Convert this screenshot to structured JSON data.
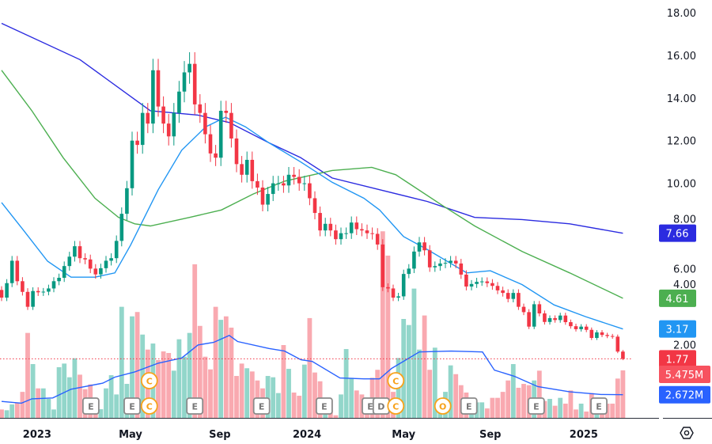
{
  "chart_data": {
    "type": "candlestick",
    "interval": "weekly",
    "y_ticks": [
      "18.00",
      "16.00",
      "14.00",
      "12.00",
      "10.00",
      "8.00",
      "6.00",
      "4.00",
      "2.00"
    ],
    "x_ticks": [
      {
        "label": "2023",
        "week": 6.8
      },
      {
        "label": "May",
        "week": 24.7
      },
      {
        "label": "Sep",
        "week": 41.8
      },
      {
        "label": "2024",
        "week": 58.5
      },
      {
        "label": "May",
        "week": 77
      },
      {
        "label": "Sep",
        "week": 93.6
      },
      {
        "label": "2025",
        "week": 111.5
      }
    ],
    "close": [
      4.64,
      5.32,
      6.37,
      5.41,
      4.91,
      4.21,
      4.95,
      4.89,
      4.92,
      5.07,
      5.41,
      5.57,
      6.12,
      6.56,
      7.05,
      6.49,
      6.43,
      6.0,
      5.73,
      6.02,
      6.37,
      6.49,
      7.3,
      8.57,
      9.77,
      12.0,
      11.8,
      13.3,
      12.8,
      15.3,
      13.6,
      12.8,
      12.2,
      13.3,
      14.3,
      15.2,
      15.6,
      13.7,
      13.3,
      12.3,
      11.4,
      11.2,
      13.4,
      13.3,
      12.1,
      10.9,
      10.4,
      11.1,
      10.1,
      9.8,
      9.0,
      9.5,
      10.0,
      10.0,
      9.9,
      10.4,
      10.3,
      10.0,
      10.0,
      9.3,
      8.61,
      7.79,
      8.1,
      7.79,
      7.38,
      7.66,
      7.66,
      8.16,
      7.85,
      7.79,
      7.66,
      7.63,
      7.13,
      5.13,
      5.07,
      4.64,
      4.7,
      5.75,
      6.0,
      6.8,
      7.23,
      6.86,
      6.06,
      6.12,
      6.24,
      6.27,
      6.37,
      6.24,
      5.72,
      5.16,
      5.28,
      5.38,
      5.4,
      5.32,
      5.19,
      4.98,
      4.86,
      4.58,
      4.86,
      4.21,
      3.96,
      3.28,
      4.33,
      3.9,
      3.5,
      3.68,
      3.59,
      3.8,
      3.49,
      3.3,
      3.16,
      3.28,
      3.13,
      2.75,
      3.01,
      2.89,
      2.84,
      2.81,
      2.11,
      1.77
    ],
    "first_open": 5.0,
    "volume_millions": [
      0.97,
      0.88,
      1.55,
      1.79,
      3.0,
      9.79,
      6.2,
      3.4,
      3.4,
      2.19,
      0.97,
      5.84,
      6.26,
      4.68,
      6.87,
      4.98,
      3.31,
      3.86,
      1.5,
      1.0,
      3.4,
      4.92,
      2.7,
      12.8,
      3.92,
      11.7,
      12.2,
      9.6,
      7.87,
      8.57,
      6.66,
      7.66,
      7.48,
      5.44,
      9.06,
      7.05,
      9.79,
      17.7,
      10.6,
      7.05,
      5.59,
      12.8,
      11.3,
      11.7,
      10.4,
      4.83,
      6.26,
      5.72,
      5.35,
      4.31,
      3.4,
      4.83,
      4.68,
      2.86,
      8.39,
      5.65,
      2.92,
      2.55,
      6.14,
      11.5,
      5.23,
      4.22,
      1.64,
      0.88,
      0.3,
      2.7,
      7.93,
      4.62,
      3.16,
      2.7,
      1.6,
      4.62,
      5.54,
      21.5,
      18.7,
      3.0,
      6.9,
      11.4,
      10.7,
      14.9,
      7.87,
      11.8,
      5.54,
      8.09,
      1.6,
      3.0,
      6.05,
      5.04,
      3.77,
      2.92,
      2.31,
      1.79,
      1.79,
      1.09,
      2.31,
      2.31,
      3.0,
      4.31,
      6.2,
      3.47,
      3.92,
      3.77,
      4.31,
      5.44,
      1.94,
      2.19,
      1.4,
      2.31,
      1.64,
      3.16,
      0.97,
      1.64,
      0.73,
      2.86,
      0.73,
      1.34,
      1.64,
      1.64,
      4.53,
      5.475
    ],
    "moving_averages": [
      {
        "name": "ma-long",
        "color": "#2b2be0",
        "last": "7.66",
        "points": [
          [
            0,
            17.5
          ],
          [
            15,
            15.8
          ],
          [
            28.5,
            13.4
          ],
          [
            37.6,
            13.2
          ],
          [
            43.6,
            12.85
          ],
          [
            51.2,
            11.9
          ],
          [
            57.3,
            11.2
          ],
          [
            63.3,
            10.25
          ],
          [
            72.4,
            9.7
          ],
          [
            81.5,
            9.15
          ],
          [
            90.6,
            8.4
          ],
          [
            99.7,
            8.3
          ],
          [
            108.8,
            8.1
          ],
          [
            119,
            7.66
          ]
        ]
      },
      {
        "name": "ma-mid",
        "color": "#4caf50",
        "last": "4.61",
        "points": [
          [
            0,
            15.3
          ],
          [
            5.8,
            13.4
          ],
          [
            11.8,
            11.2
          ],
          [
            17.9,
            9.3
          ],
          [
            22.4,
            8.4
          ],
          [
            25.5,
            8.1
          ],
          [
            28.5,
            8.0
          ],
          [
            36,
            8.4
          ],
          [
            42.1,
            8.75
          ],
          [
            48.2,
            9.5
          ],
          [
            54.2,
            10.1
          ],
          [
            63.3,
            10.6
          ],
          [
            70.9,
            10.75
          ],
          [
            75.5,
            10.4
          ],
          [
            84.5,
            8.95
          ],
          [
            90.6,
            8.0
          ],
          [
            99.7,
            6.8
          ],
          [
            108.8,
            5.8
          ],
          [
            119,
            4.61
          ]
        ]
      },
      {
        "name": "ma-short",
        "color": "#2196f3",
        "last": "3.17",
        "points": [
          [
            0,
            9.1
          ],
          [
            4.2,
            7.8
          ],
          [
            8.8,
            6.35
          ],
          [
            13.3,
            5.6
          ],
          [
            17.9,
            5.6
          ],
          [
            21.7,
            5.8
          ],
          [
            24.7,
            7.1
          ],
          [
            30,
            9.7
          ],
          [
            34.5,
            11.55
          ],
          [
            39.1,
            12.65
          ],
          [
            42.9,
            13.1
          ],
          [
            46.7,
            12.65
          ],
          [
            51.2,
            11.9
          ],
          [
            57.3,
            11.0
          ],
          [
            63.3,
            10.05
          ],
          [
            69.4,
            9.3
          ],
          [
            72.4,
            8.75
          ],
          [
            77,
            7.5
          ],
          [
            81.5,
            6.9
          ],
          [
            89.1,
            5.8
          ],
          [
            93.6,
            5.9
          ],
          [
            99.7,
            5.25
          ],
          [
            105.8,
            4.3
          ],
          [
            111.8,
            3.75
          ],
          [
            119,
            3.17
          ]
        ]
      }
    ],
    "volume_ma": {
      "color": "#2962ff",
      "last": "2.672M",
      "points": [
        [
          0,
          1.9
        ],
        [
          3.8,
          1.7
        ],
        [
          5.8,
          2.2
        ],
        [
          9.8,
          2.3
        ],
        [
          13.3,
          3.3
        ],
        [
          19.4,
          4.0
        ],
        [
          21.7,
          4.7
        ],
        [
          25.5,
          5.3
        ],
        [
          30,
          6.3
        ],
        [
          34.5,
          6.9
        ],
        [
          37.6,
          8.4
        ],
        [
          40.6,
          8.7
        ],
        [
          43.6,
          9.5
        ],
        [
          45.2,
          8.8
        ],
        [
          51.2,
          8.0
        ],
        [
          54.2,
          7.7
        ],
        [
          57.3,
          6.7
        ],
        [
          59.5,
          6.5
        ],
        [
          64.8,
          4.6
        ],
        [
          69.4,
          4.5
        ],
        [
          72.4,
          4.5
        ],
        [
          74.7,
          5.7
        ],
        [
          80,
          7.6
        ],
        [
          86.1,
          7.7
        ],
        [
          92.1,
          7.6
        ],
        [
          94.4,
          5.5
        ],
        [
          98.2,
          4.8
        ],
        [
          102.7,
          3.6
        ],
        [
          108.8,
          3.0
        ],
        [
          114.8,
          2.7
        ],
        [
          119,
          2.672
        ]
      ]
    },
    "price_labels": [
      {
        "text": "7.66",
        "value": 7.66,
        "color": "#2b2be0"
      },
      {
        "text": "4.61",
        "value": 4.61,
        "color": "#4caf50"
      },
      {
        "text": "3.17",
        "value": 3.17,
        "color": "#2196f3"
      },
      {
        "text": "1.77",
        "value": 1.77,
        "color": "#f23645"
      }
    ],
    "volume_labels": [
      {
        "text": "5.475M",
        "value": 5.475,
        "color": "#f7525f"
      },
      {
        "text": "2.672M",
        "value": 2.672,
        "color": "#2962ff"
      }
    ],
    "last_price": 1.77,
    "events": [
      {
        "letter": "E",
        "week": 17.1,
        "row": 0
      },
      {
        "letter": "E",
        "week": 25,
        "row": 0
      },
      {
        "letter": "C",
        "week": 28.3,
        "row": 0
      },
      {
        "letter": "C",
        "week": 28.3,
        "row": 1
      },
      {
        "letter": "E",
        "week": 37,
        "row": 0
      },
      {
        "letter": "E",
        "week": 49.8,
        "row": 0
      },
      {
        "letter": "E",
        "week": 61.8,
        "row": 0
      },
      {
        "letter": "E",
        "week": 70.6,
        "row": 0
      },
      {
        "letter": "D",
        "week": 72.7,
        "row": 0
      },
      {
        "letter": "C",
        "week": 75.5,
        "row": 0
      },
      {
        "letter": "C",
        "week": 75.5,
        "row": 1
      },
      {
        "letter": "O",
        "week": 84.5,
        "row": 0
      },
      {
        "letter": "E",
        "week": 89.5,
        "row": 0
      },
      {
        "letter": "E",
        "week": 102.4,
        "row": 0
      },
      {
        "letter": "E",
        "week": 114.4,
        "row": 0
      }
    ],
    "colors": {
      "up": "#089981",
      "down": "#f23645",
      "vol_up": "#92d6ca",
      "vol_down": "#f9a9b0",
      "earnings": "#8a8a8a",
      "corporate": "#f7a21b"
    }
  },
  "toolbar": {
    "settings_icon": "hexagon-settings-icon"
  }
}
